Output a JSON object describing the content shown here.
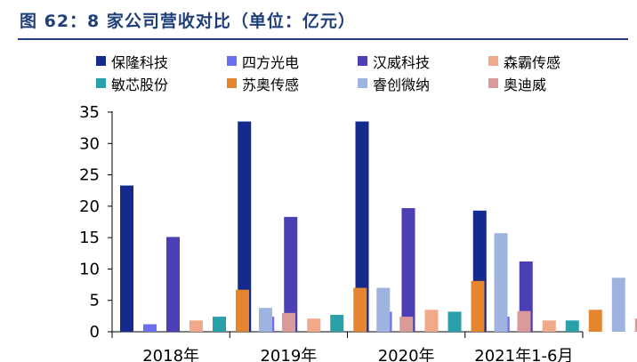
{
  "figure_title": "图 62：8 家公司营收对比（单位：亿元）",
  "colors": {
    "title": "#1f3f7a",
    "axis": "#000000"
  },
  "chart_data": {
    "type": "bar",
    "title": "图 62：8 家公司营收对比（单位：亿元）",
    "xlabel": "",
    "ylabel": "",
    "categories": [
      "2018年",
      "2019年",
      "2020年",
      "2021年1-6月"
    ],
    "ylim": [
      0,
      35
    ],
    "yticks": [
      0,
      5,
      10,
      15,
      20,
      25,
      30,
      35
    ],
    "grid": false,
    "legend_position": "top",
    "series": [
      {
        "name": "保隆科技",
        "color": "#142a8c",
        "values": [
          23.3,
          33.5,
          33.5,
          19.3
        ]
      },
      {
        "name": "四方光电",
        "color": "#6b6ff2",
        "values": [
          1.2,
          2.4,
          3.2,
          2.4
        ]
      },
      {
        "name": "汉威科技",
        "color": "#4a3fb5",
        "values": [
          15.1,
          18.3,
          19.7,
          11.2
        ]
      },
      {
        "name": "森霸传感",
        "color": "#f2a98a",
        "values": [
          1.8,
          2.1,
          3.5,
          1.8
        ]
      },
      {
        "name": "敏芯股份",
        "color": "#2aa0a8",
        "values": [
          2.4,
          2.7,
          3.2,
          1.8
        ]
      },
      {
        "name": "苏奥传感",
        "color": "#e5862e",
        "values": [
          6.7,
          7.0,
          8.1,
          3.5
        ]
      },
      {
        "name": "睿创微纳",
        "color": "#9fb3e0",
        "values": [
          3.8,
          7.0,
          15.7,
          8.6
        ]
      },
      {
        "name": "奥迪威",
        "color": "#d99a9a",
        "values": [
          3.0,
          2.4,
          3.3,
          2.1
        ]
      }
    ]
  }
}
